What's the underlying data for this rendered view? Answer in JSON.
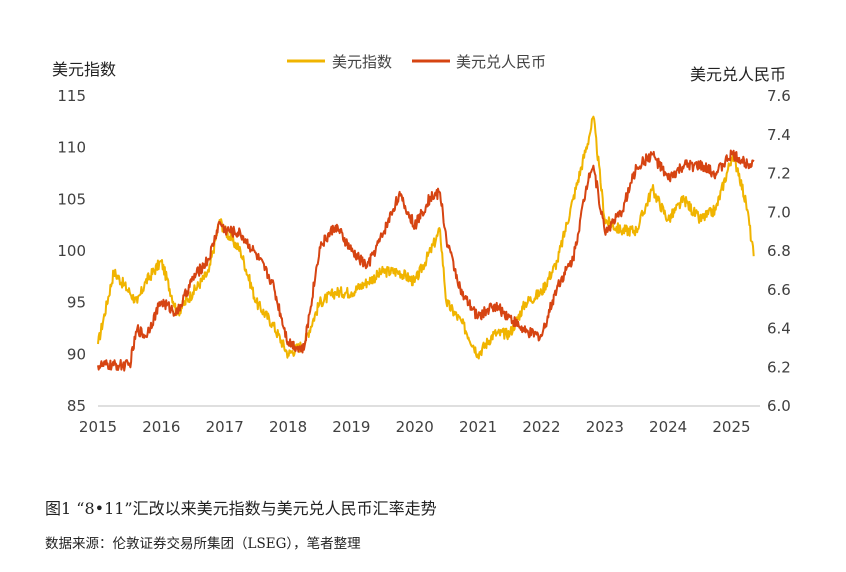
{
  "chart_data": {
    "type": "line",
    "title": "",
    "xlabel": "",
    "ylabel_left": "美元指数",
    "ylabel_right": "美元兑人民币",
    "x_ticks": [
      "2015",
      "2016",
      "2017",
      "2018",
      "2019",
      "2020",
      "2021",
      "2022",
      "2023",
      "2024",
      "2025"
    ],
    "ylim_left": [
      85,
      115
    ],
    "yticks_left": [
      "115",
      "110",
      "105",
      "100",
      "95",
      "90",
      "85"
    ],
    "ylim_right": [
      6.0,
      7.6
    ],
    "yticks_right": [
      "7.6",
      "7.4",
      "7.2",
      "7.0",
      "6.8",
      "6.6",
      "6.4",
      "6.2",
      "6.0"
    ],
    "grid": false,
    "legend_position": "top-center",
    "x": [
      2015.0,
      2015.25,
      2015.5,
      2015.62,
      2015.75,
      2016.0,
      2016.25,
      2016.5,
      2016.75,
      2016.92,
      2017.0,
      2017.25,
      2017.5,
      2017.75,
      2018.0,
      2018.25,
      2018.5,
      2018.75,
      2019.0,
      2019.25,
      2019.5,
      2019.75,
      2020.0,
      2020.25,
      2020.4,
      2020.5,
      2020.75,
      2021.0,
      2021.25,
      2021.5,
      2021.75,
      2022.0,
      2022.25,
      2022.5,
      2022.75,
      2022.82,
      2023.0,
      2023.25,
      2023.5,
      2023.75,
      2024.0,
      2024.25,
      2024.5,
      2024.75,
      2025.0,
      2025.1,
      2025.25,
      2025.35
    ],
    "series": [
      {
        "name": "美元指数",
        "axis": "left",
        "color": "#F0B400",
        "values": [
          91,
          98,
          96,
          95,
          97,
          99,
          94,
          96,
          98,
          103,
          102,
          100,
          95,
          93,
          90,
          91,
          95,
          96,
          96,
          97,
          98,
          98,
          97,
          100,
          102,
          95,
          93,
          90,
          92,
          92,
          95,
          96,
          99,
          105,
          111,
          113,
          103,
          102,
          102,
          106,
          103,
          105,
          103,
          104,
          109,
          108,
          104,
          99.5
        ]
      },
      {
        "name": "美元兑人民币",
        "axis": "right",
        "color": "#D64412",
        "values": [
          6.21,
          6.21,
          6.21,
          6.4,
          6.36,
          6.54,
          6.48,
          6.66,
          6.76,
          6.95,
          6.91,
          6.89,
          6.78,
          6.64,
          6.33,
          6.29,
          6.82,
          6.93,
          6.8,
          6.72,
          6.89,
          7.09,
          6.93,
          7.08,
          7.1,
          6.86,
          6.57,
          6.46,
          6.52,
          6.46,
          6.38,
          6.36,
          6.62,
          6.76,
          7.2,
          7.24,
          6.9,
          6.99,
          7.23,
          7.3,
          7.17,
          7.24,
          7.24,
          7.2,
          7.3,
          7.28,
          7.25,
          7.27
        ]
      }
    ]
  },
  "caption": "图1 “8•11”汇改以来美元指数与美元兑人民币汇率走势",
  "source": "数据来源：伦敦证券交易所集团（LSEG），笔者整理"
}
